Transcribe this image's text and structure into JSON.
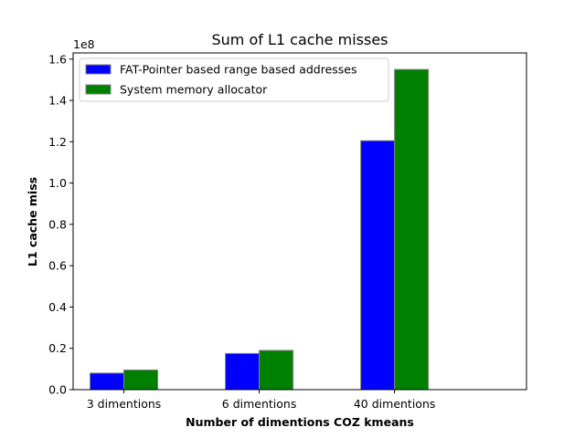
{
  "chart_data": {
    "type": "bar",
    "title": "Sum of L1 cache misses",
    "xlabel": "Number of dimentions COZ kmeans",
    "ylabel": "L1 cache miss",
    "y_offset_label": "1e8",
    "categories": [
      "3 dimentions",
      "6 dimentions",
      "40 dimentions"
    ],
    "series": [
      {
        "name": "FAT-Pointer based range based addresses",
        "color": "#0000ff",
        "values": [
          8000000,
          17500000,
          120500000
        ]
      },
      {
        "name": "System memory allocator",
        "color": "#008000",
        "values": [
          9500000,
          19000000,
          155000000
        ]
      }
    ],
    "ylim": [
      0,
      163000000
    ],
    "yticks": [
      0,
      20000000,
      40000000,
      60000000,
      80000000,
      100000000,
      120000000,
      140000000,
      160000000
    ],
    "ytick_labels": [
      "0.0",
      "0.2",
      "0.4",
      "0.6",
      "0.8",
      "1.0",
      "1.2",
      "1.4",
      "1.6"
    ],
    "grid": false,
    "legend_position": "top-left",
    "bar_edge_color": "#808080"
  }
}
